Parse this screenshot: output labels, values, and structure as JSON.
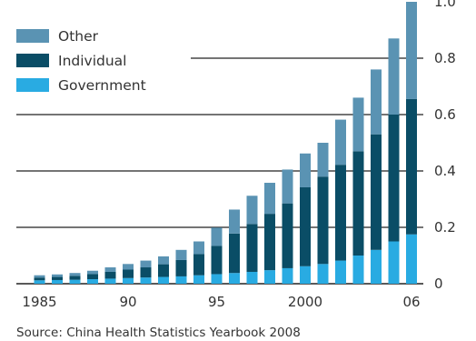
{
  "chart_data": {
    "type": "bar",
    "stacked": true,
    "categories": [
      "1985",
      "1986",
      "1987",
      "1988",
      "1989",
      "1990",
      "1991",
      "1992",
      "1993",
      "1994",
      "1995",
      "1996",
      "1997",
      "1998",
      "1999",
      "2000",
      "2001",
      "2002",
      "2003",
      "2004",
      "2005",
      "2006"
    ],
    "x_tick_labels": [
      "1985",
      "90",
      "95",
      "2000",
      "06"
    ],
    "x_tick_categories": [
      "1985",
      "1990",
      "1995",
      "2000",
      "2006"
    ],
    "y_tick_labels": [
      "0",
      "0.2",
      "0.4",
      "0.6",
      "0.8",
      "1.0"
    ],
    "y_ticks": [
      0,
      0.2,
      0.4,
      0.6,
      0.8,
      1.0
    ],
    "ylim": [
      0,
      1.0
    ],
    "grid": true,
    "legend_position": "top-left",
    "series": [
      {
        "name": "Government",
        "color": "#29abe2",
        "values": [
          0.012,
          0.013,
          0.014,
          0.016,
          0.018,
          0.02,
          0.022,
          0.024,
          0.026,
          0.03,
          0.034,
          0.038,
          0.042,
          0.048,
          0.055,
          0.062,
          0.07,
          0.082,
          0.1,
          0.12,
          0.15,
          0.175
        ]
      },
      {
        "name": "Individual",
        "color": "#0a4d66",
        "values": [
          0.01,
          0.011,
          0.014,
          0.018,
          0.024,
          0.03,
          0.036,
          0.045,
          0.058,
          0.075,
          0.1,
          0.14,
          0.17,
          0.2,
          0.23,
          0.28,
          0.31,
          0.34,
          0.37,
          0.41,
          0.45,
          0.48
        ]
      },
      {
        "name": "Other",
        "color": "#5a93b3",
        "values": [
          0.008,
          0.009,
          0.01,
          0.012,
          0.016,
          0.02,
          0.024,
          0.028,
          0.036,
          0.045,
          0.065,
          0.085,
          0.1,
          0.11,
          0.12,
          0.12,
          0.12,
          0.16,
          0.19,
          0.23,
          0.27,
          0.345
        ]
      }
    ],
    "source": "Source: China Health Statistics Yearbook 2008"
  }
}
